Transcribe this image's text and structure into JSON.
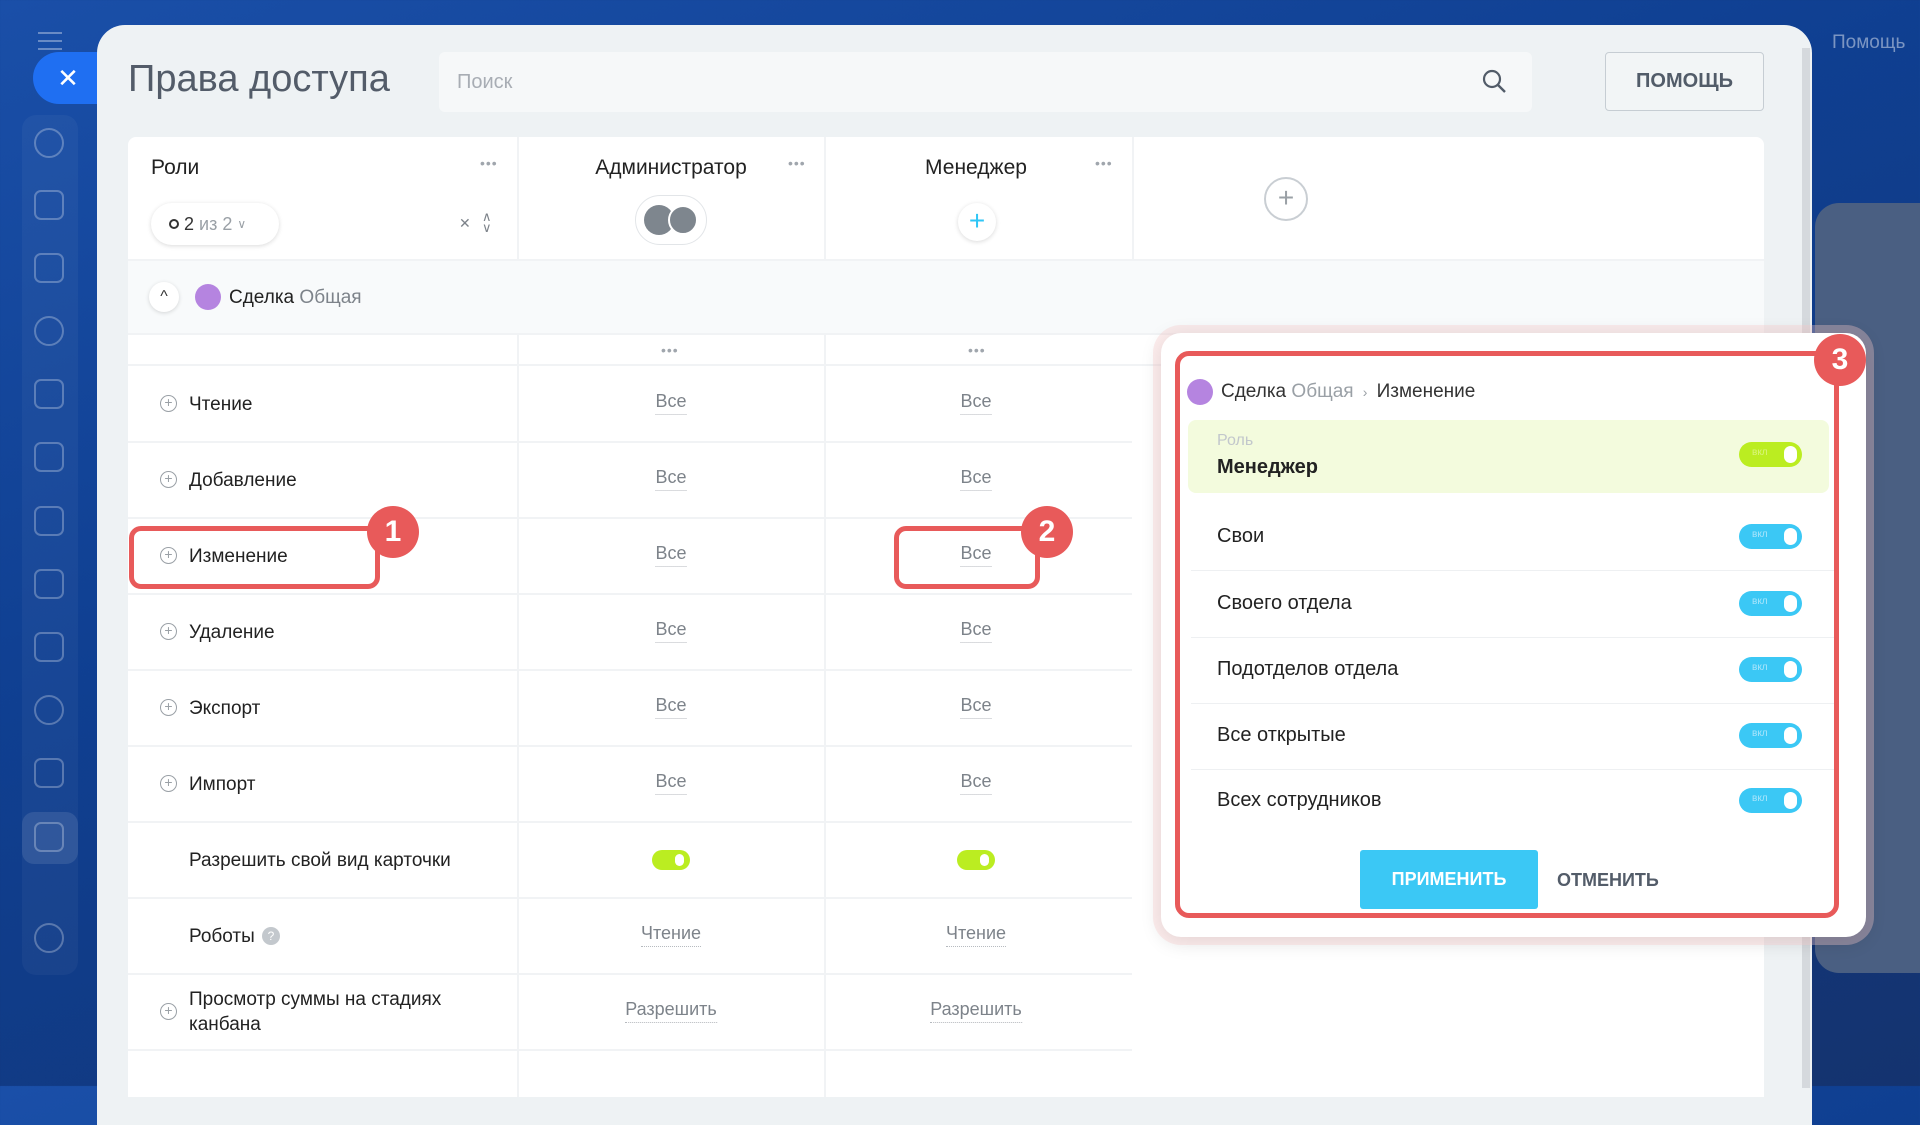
{
  "page": {
    "title": "Права доступа",
    "search_placeholder": "Поиск",
    "help_button": "ПОМОЩЬ",
    "bg_help": "Помощь"
  },
  "header": {
    "roles_label": "Роли",
    "filter_count": "2",
    "filter_of": "из 2",
    "columns": [
      {
        "name": "Администратор"
      },
      {
        "name": "Менеджер"
      }
    ]
  },
  "section": {
    "entity": "Сделка",
    "category": "Общая"
  },
  "rows": [
    {
      "label": "Чтение",
      "expand": true,
      "type": "link",
      "values": [
        "Все",
        "Все"
      ]
    },
    {
      "label": "Добавление",
      "expand": true,
      "type": "link",
      "values": [
        "Все",
        "Все"
      ]
    },
    {
      "label": "Изменение",
      "expand": true,
      "type": "link",
      "values": [
        "Все",
        "Все"
      ]
    },
    {
      "label": "Удаление",
      "expand": true,
      "type": "link",
      "values": [
        "Все",
        "Все"
      ]
    },
    {
      "label": "Экспорт",
      "expand": true,
      "type": "link",
      "values": [
        "Все",
        "Все"
      ]
    },
    {
      "label": "Импорт",
      "expand": true,
      "type": "link",
      "values": [
        "Все",
        "Все"
      ]
    },
    {
      "label": "Разрешить свой вид карточки",
      "expand": false,
      "type": "toggle",
      "values": [
        true,
        true
      ]
    },
    {
      "label": "Роботы",
      "expand": false,
      "help": true,
      "type": "link",
      "values": [
        "Чтение",
        "Чтение"
      ]
    },
    {
      "label": "Просмотр суммы на стадиях канбана",
      "expand": true,
      "type": "link",
      "values": [
        "Разрешить",
        "Разрешить"
      ]
    }
  ],
  "popup": {
    "breadcrumb": {
      "entity": "Сделка",
      "category": "Общая",
      "action": "Изменение"
    },
    "role_caption": "Роль",
    "role_name": "Менеджер",
    "toggle_text": "вкл",
    "options": [
      {
        "label": "Свои",
        "on": true
      },
      {
        "label": "Своего отдела",
        "on": true
      },
      {
        "label": "Подотделов отдела",
        "on": true
      },
      {
        "label": "Все открытые",
        "on": true
      },
      {
        "label": "Всех сотрудников",
        "on": true
      }
    ],
    "apply": "ПРИМЕНИТЬ",
    "cancel": "ОТМЕНИТЬ"
  },
  "annotations": [
    "1",
    "2",
    "3"
  ],
  "colors": {
    "accent": "#3bc8f5",
    "toggle_green": "#bbed21",
    "annotation_red": "#e85a5a",
    "close_blue": "#1f6ff2"
  }
}
